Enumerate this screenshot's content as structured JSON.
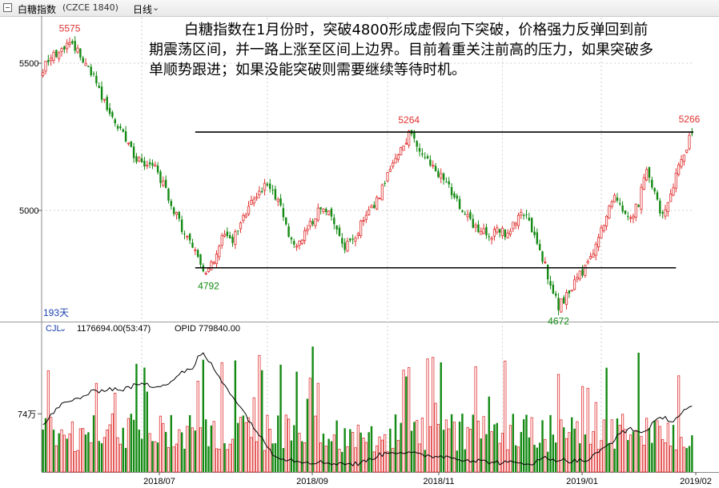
{
  "window": {
    "title": "白糖指数",
    "code": "(CZCE 1840)",
    "period": "日线",
    "period_arrow": "chevron-down-icon"
  },
  "annotation": "白糖指数在1月份时，突破4800形成虚假向下突破，价格强力反弹回到前期震荡区间，并一路上涨至区间上边界。目前着重关注前高的压力，如果突破多单顺势跟进；如果没能突破则需要继续等待时机。",
  "colors": {
    "up": "#e03030",
    "down": "#138a13",
    "line": "#000000",
    "grid": "#d0d0d0",
    "label_high": "#e03030",
    "label_low": "#138a13",
    "axis_text": "#000000",
    "info_text": "#1a3fb0"
  },
  "chart_data": [
    {
      "type": "candlestick",
      "title": "",
      "y_ticks": [
        5500,
        5000
      ],
      "ylim": [
        4640,
        5620
      ],
      "x_ticks": [
        "2018/07",
        "2018/09",
        "2018/11",
        "2019/01",
        "2019/02"
      ],
      "days_label": "193天",
      "horizontal_levels": [
        5266,
        4805
      ],
      "annotations": [
        {
          "text": "5575",
          "value": 5575,
          "kind": "high"
        },
        {
          "text": "5264",
          "value": 5264,
          "kind": "high"
        },
        {
          "text": "5266",
          "value": 5266,
          "kind": "high"
        },
        {
          "text": "4792",
          "value": 4792,
          "kind": "low"
        },
        {
          "text": "4672",
          "value": 4672,
          "kind": "low"
        }
      ],
      "keypoints": [
        [
          0,
          5480
        ],
        [
          3,
          5520
        ],
        [
          8,
          5550
        ],
        [
          10,
          5575
        ],
        [
          14,
          5530
        ],
        [
          18,
          5470
        ],
        [
          22,
          5390
        ],
        [
          26,
          5310
        ],
        [
          29,
          5270
        ],
        [
          32,
          5230
        ],
        [
          35,
          5170
        ],
        [
          39,
          5160
        ],
        [
          42,
          5140
        ],
        [
          45,
          5090
        ],
        [
          48,
          5020
        ],
        [
          51,
          4960
        ],
        [
          54,
          4900
        ],
        [
          57,
          4860
        ],
        [
          60,
          4800
        ],
        [
          62,
          4792
        ],
        [
          65,
          4850
        ],
        [
          68,
          4930
        ],
        [
          71,
          4900
        ],
        [
          74,
          4950
        ],
        [
          77,
          5020
        ],
        [
          80,
          5060
        ],
        [
          83,
          5080
        ],
        [
          86,
          5060
        ],
        [
          89,
          5020
        ],
        [
          92,
          4920
        ],
        [
          95,
          4880
        ],
        [
          98,
          4930
        ],
        [
          101,
          4960
        ],
        [
          104,
          5010
        ],
        [
          107,
          4990
        ],
        [
          110,
          4930
        ],
        [
          113,
          4880
        ],
        [
          116,
          4900
        ],
        [
          119,
          4950
        ],
        [
          122,
          5000
        ],
        [
          125,
          5030
        ],
        [
          128,
          5100
        ],
        [
          131,
          5150
        ],
        [
          134,
          5200
        ],
        [
          137,
          5264
        ],
        [
          140,
          5230
        ],
        [
          143,
          5180
        ],
        [
          146,
          5140
        ],
        [
          149,
          5110
        ],
        [
          152,
          5080
        ],
        [
          155,
          5030
        ],
        [
          158,
          4990
        ],
        [
          161,
          4950
        ],
        [
          164,
          4930
        ],
        [
          167,
          4910
        ],
        [
          170,
          4940
        ],
        [
          173,
          4920
        ],
        [
          176,
          4950
        ],
        [
          179,
          4990
        ],
        [
          182,
          4960
        ],
        [
          185,
          4900
        ],
        [
          188,
          4810
        ],
        [
          191,
          4720
        ],
        [
          193,
          4672
        ],
        [
          196,
          4710
        ],
        [
          199,
          4760
        ],
        [
          202,
          4790
        ],
        [
          205,
          4830
        ],
        [
          208,
          4900
        ],
        [
          211,
          4990
        ],
        [
          214,
          5050
        ],
        [
          217,
          5000
        ],
        [
          220,
          4980
        ],
        [
          223,
          5020
        ],
        [
          226,
          5150
        ],
        [
          229,
          5050
        ],
        [
          232,
          4980
        ],
        [
          235,
          5060
        ],
        [
          238,
          5150
        ],
        [
          241,
          5220
        ],
        [
          243,
          5266
        ]
      ]
    },
    {
      "type": "bar",
      "indicator": "CJL",
      "indicator_arrow": "chevron-down-icon",
      "values_text": "1176694.00(53:47)",
      "opid_text": "OPID 779840.00",
      "y_tick_label": "74万",
      "y_tick_value": 740000,
      "ylim": [
        0,
        1750000
      ],
      "line_keypoints": [
        [
          0,
          590000
        ],
        [
          6,
          840000
        ],
        [
          12,
          920000
        ],
        [
          18,
          1010000
        ],
        [
          24,
          1060000
        ],
        [
          30,
          1050000
        ],
        [
          36,
          1120000
        ],
        [
          42,
          1090000
        ],
        [
          48,
          1150000
        ],
        [
          52,
          1280000
        ],
        [
          56,
          1300000
        ],
        [
          58,
          1450000
        ],
        [
          60,
          1500000
        ],
        [
          62,
          1420000
        ],
        [
          66,
          1200000
        ],
        [
          70,
          1020000
        ],
        [
          74,
          820000
        ],
        [
          78,
          620000
        ],
        [
          82,
          420000
        ],
        [
          86,
          240000
        ],
        [
          90,
          170000
        ],
        [
          96,
          140000
        ],
        [
          104,
          120000
        ],
        [
          112,
          110000
        ],
        [
          118,
          100000
        ],
        [
          124,
          190000
        ],
        [
          130,
          260000
        ],
        [
          136,
          250000
        ],
        [
          142,
          210000
        ],
        [
          150,
          200000
        ],
        [
          158,
          160000
        ],
        [
          166,
          130000
        ],
        [
          172,
          120000
        ],
        [
          178,
          110000
        ],
        [
          184,
          120000
        ],
        [
          188,
          180000
        ],
        [
          192,
          160000
        ],
        [
          198,
          140000
        ],
        [
          204,
          150000
        ],
        [
          210,
          300000
        ],
        [
          216,
          480000
        ],
        [
          220,
          560000
        ],
        [
          224,
          490000
        ],
        [
          228,
          600000
        ],
        [
          232,
          700000
        ],
        [
          236,
          650000
        ],
        [
          240,
          780000
        ],
        [
          243,
          820000
        ]
      ]
    }
  ]
}
